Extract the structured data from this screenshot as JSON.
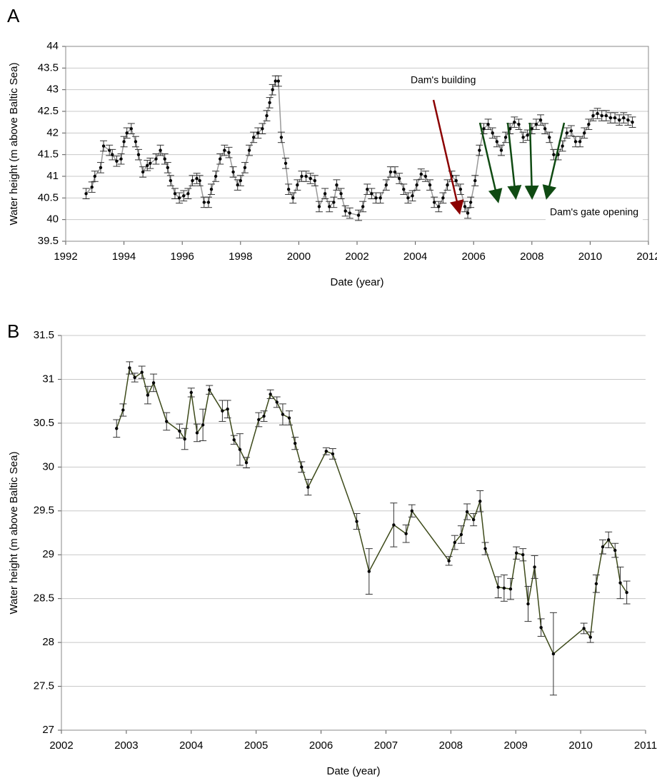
{
  "chart_data": [
    {
      "type": "line",
      "label": "A",
      "x_label": "Date (year)",
      "y_label": "Water height (m above Baltic Sea)",
      "xlim": [
        1992,
        2012
      ],
      "xticks": [
        1992,
        1994,
        1996,
        1998,
        2000,
        2002,
        2004,
        2006,
        2008,
        2010,
        2012
      ],
      "ylim": [
        39.5,
        44
      ],
      "yticks": [
        39.5,
        40,
        40.5,
        41,
        41.5,
        42,
        42.5,
        43,
        43.5,
        44
      ],
      "grid": true,
      "frame": true,
      "annotations": [
        {
          "text": "Dam's building"
        },
        {
          "text": "Dam's gate opening"
        }
      ],
      "x": [
        1992.7,
        1992.9,
        1993.0,
        1993.2,
        1993.3,
        1993.5,
        1993.6,
        1993.75,
        1993.9,
        1994.0,
        1994.1,
        1994.25,
        1994.4,
        1994.5,
        1994.65,
        1994.8,
        1994.9,
        1995.1,
        1995.25,
        1995.4,
        1995.5,
        1995.6,
        1995.75,
        1995.9,
        1996.05,
        1996.2,
        1996.35,
        1996.5,
        1996.6,
        1996.75,
        1996.9,
        1997.0,
        1997.15,
        1997.3,
        1997.45,
        1997.6,
        1997.75,
        1997.9,
        1998.0,
        1998.15,
        1998.3,
        1998.45,
        1998.6,
        1998.75,
        1998.9,
        1999.0,
        1999.1,
        1999.2,
        1999.3,
        1999.4,
        1999.55,
        1999.65,
        1999.8,
        1999.95,
        2000.1,
        2000.25,
        2000.4,
        2000.55,
        2000.7,
        2000.9,
        2001.05,
        2001.2,
        2001.3,
        2001.45,
        2001.6,
        2001.75,
        2002.05,
        2002.2,
        2002.35,
        2002.5,
        2002.65,
        2002.8,
        2003.0,
        2003.15,
        2003.3,
        2003.45,
        2003.6,
        2003.75,
        2003.9,
        2004.05,
        2004.2,
        2004.35,
        2004.5,
        2004.65,
        2004.8,
        2004.95,
        2005.1,
        2005.25,
        2005.4,
        2005.55,
        2005.7,
        2005.8,
        2005.9,
        2006.05,
        2006.2,
        2006.35,
        2006.5,
        2006.65,
        2006.8,
        2006.95,
        2007.1,
        2007.25,
        2007.4,
        2007.55,
        2007.7,
        2007.85,
        2008.0,
        2008.15,
        2008.3,
        2008.45,
        2008.6,
        2008.75,
        2008.9,
        2009.05,
        2009.2,
        2009.35,
        2009.5,
        2009.65,
        2009.8,
        2009.95,
        2010.1,
        2010.25,
        2010.4,
        2010.55,
        2010.7,
        2010.85,
        2011.0,
        2011.15,
        2011.3,
        2011.45
      ],
      "series": [
        {
          "color": "#999999",
          "marker_color": "#000000",
          "error": 0.12,
          "values": [
            40.6,
            40.75,
            41.0,
            41.2,
            41.7,
            41.6,
            41.5,
            41.35,
            41.4,
            41.8,
            42.0,
            42.1,
            41.8,
            41.5,
            41.1,
            41.25,
            41.3,
            41.4,
            41.6,
            41.4,
            41.2,
            40.9,
            40.6,
            40.5,
            40.55,
            40.6,
            40.9,
            40.95,
            40.9,
            40.4,
            40.4,
            40.7,
            41.0,
            41.4,
            41.6,
            41.55,
            41.1,
            40.8,
            40.9,
            41.2,
            41.6,
            41.9,
            42.0,
            42.1,
            42.4,
            42.7,
            43.0,
            43.2,
            43.2,
            41.9,
            41.3,
            40.7,
            40.5,
            40.8,
            41.0,
            41.0,
            40.95,
            40.9,
            40.3,
            40.6,
            40.3,
            40.4,
            40.8,
            40.6,
            40.2,
            40.15,
            40.1,
            40.3,
            40.7,
            40.6,
            40.5,
            40.5,
            40.8,
            41.1,
            41.1,
            40.95,
            40.7,
            40.5,
            40.55,
            40.8,
            41.05,
            41.0,
            40.8,
            40.4,
            40.3,
            40.5,
            40.8,
            41.0,
            40.9,
            40.7,
            40.3,
            40.15,
            40.4,
            40.9,
            41.6,
            42.1,
            42.2,
            42.0,
            41.8,
            41.6,
            41.9,
            42.1,
            42.25,
            42.2,
            41.9,
            41.95,
            42.1,
            42.2,
            42.3,
            42.1,
            41.9,
            41.5,
            41.5,
            41.7,
            42.0,
            42.05,
            41.8,
            41.8,
            42.0,
            42.2,
            42.4,
            42.45,
            42.4,
            42.4,
            42.35,
            42.35,
            42.3,
            42.35,
            42.3,
            42.25
          ]
        }
      ]
    },
    {
      "type": "line",
      "label": "B",
      "x_label": "Date (year)",
      "y_label": "Water height (m above Baltic Sea)",
      "xlim": [
        2002,
        2011
      ],
      "xticks": [
        2002,
        2003,
        2004,
        2005,
        2006,
        2007,
        2008,
        2009,
        2010,
        2011
      ],
      "ylim": [
        27,
        31.5
      ],
      "yticks": [
        27,
        27.5,
        28,
        28.5,
        29,
        29.5,
        30,
        30.5,
        31,
        31.5
      ],
      "grid": true,
      "frame": false,
      "x": [
        2002.85,
        2002.95,
        2003.05,
        2003.13,
        2003.24,
        2003.33,
        2003.42,
        2003.62,
        2003.82,
        2003.9,
        2004.0,
        2004.09,
        2004.18,
        2004.28,
        2004.48,
        2004.56,
        2004.66,
        2004.75,
        2004.85,
        2005.04,
        2005.12,
        2005.22,
        2005.32,
        2005.41,
        2005.51,
        2005.6,
        2005.7,
        2005.8,
        2006.08,
        2006.18,
        2006.55,
        2006.74,
        2007.12,
        2007.31,
        2007.4,
        2007.97,
        2008.06,
        2008.16,
        2008.25,
        2008.35,
        2008.45,
        2008.53,
        2008.73,
        2008.82,
        2008.92,
        2009.01,
        2009.11,
        2009.19,
        2009.29,
        2009.39,
        2009.58,
        2010.05,
        2010.15,
        2010.24,
        2010.34,
        2010.43,
        2010.53,
        2010.61,
        2010.71
      ],
      "series": [
        {
          "color": "#3d4a1a",
          "marker_color": "#000000",
          "values": [
            30.44,
            30.65,
            31.13,
            31.02,
            31.08,
            30.82,
            30.96,
            30.52,
            30.41,
            30.32,
            30.85,
            30.39,
            30.48,
            30.88,
            30.64,
            30.66,
            30.31,
            30.2,
            30.05,
            30.54,
            30.58,
            30.83,
            30.74,
            30.6,
            30.56,
            30.27,
            30.0,
            29.77,
            30.18,
            30.15,
            29.38,
            28.81,
            29.34,
            29.24,
            29.5,
            28.93,
            29.14,
            29.23,
            29.49,
            29.4,
            29.61,
            29.07,
            28.63,
            28.62,
            28.61,
            29.02,
            29.0,
            28.44,
            28.86,
            28.17,
            27.87,
            28.16,
            28.06,
            28.67,
            29.09,
            29.17,
            29.05,
            28.68,
            28.57
          ],
          "errors": [
            0.1,
            0.07,
            0.07,
            0.05,
            0.07,
            0.1,
            0.1,
            0.1,
            0.08,
            0.12,
            0.05,
            0.1,
            0.18,
            0.05,
            0.12,
            0.1,
            0.05,
            0.18,
            0.06,
            0.08,
            0.06,
            0.05,
            0.06,
            0.12,
            0.08,
            0.07,
            0.06,
            0.09,
            0.04,
            0.06,
            0.09,
            0.26,
            0.25,
            0.1,
            0.07,
            0.05,
            0.08,
            0.1,
            0.09,
            0.07,
            0.12,
            0.07,
            0.12,
            0.15,
            0.12,
            0.07,
            0.07,
            0.2,
            0.13,
            0.1,
            0.47,
            0.06,
            0.06,
            0.1,
            0.08,
            0.09,
            0.08,
            0.18,
            0.13
          ]
        }
      ]
    }
  ]
}
